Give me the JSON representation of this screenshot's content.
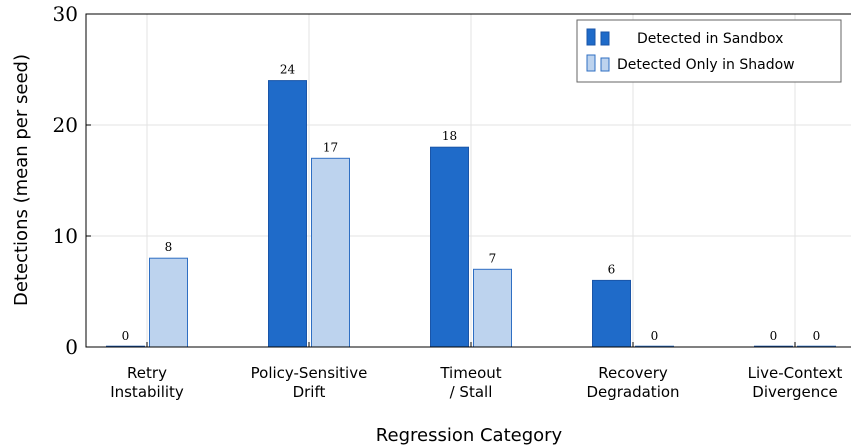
{
  "chart_data": {
    "type": "bar",
    "title": "",
    "xlabel": "Regression Category",
    "ylabel": "Detections (mean per seed)",
    "ylim": [
      0,
      30
    ],
    "yticks": [
      0,
      10,
      20,
      30
    ],
    "grid": true,
    "legend_position": "top-right",
    "categories": [
      [
        "Retry",
        "Instability"
      ],
      [
        "Policy-Sensitive",
        "Drift"
      ],
      [
        "Timeout",
        "/ Stall"
      ],
      [
        "Recovery",
        "Degradation"
      ],
      [
        "Live-Context",
        "Divergence"
      ]
    ],
    "series": [
      {
        "name": "Detected in Sandbox",
        "values": [
          0,
          24,
          18,
          6,
          0
        ],
        "color": "#1f6bc9",
        "edge": "#1a55a8"
      },
      {
        "name": "Detected Only in Shadow",
        "values": [
          8,
          17,
          7,
          0,
          0
        ],
        "color": "#bdd3ee",
        "edge": "#2f6fc3"
      }
    ]
  }
}
